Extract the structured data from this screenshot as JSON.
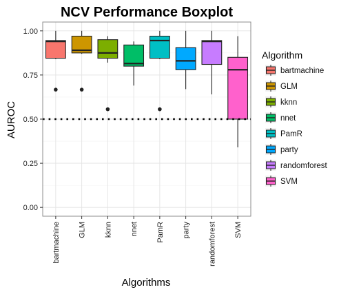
{
  "chart_data": {
    "type": "boxplot",
    "title": "NCV Performance Boxplot",
    "xlabel": "Algorithms",
    "ylabel": "AUROC",
    "ylim": [
      -0.05,
      1.05
    ],
    "yticks": [
      "0.00",
      "0.25",
      "0.50",
      "0.75",
      "1.00"
    ],
    "grid": true,
    "reference_line": {
      "y": 0.5,
      "style": "dotted"
    },
    "legend": {
      "title": "Algorithm",
      "position": "right"
    },
    "categories": [
      "bartmachine",
      "GLM",
      "kknn",
      "nnet",
      "PamR",
      "party",
      "randomforest",
      "SVM"
    ],
    "series": [
      {
        "name": "bartmachine",
        "color": "#F8766D",
        "min": 0.84,
        "q1": 0.845,
        "median": 0.94,
        "q3": 0.945,
        "max": 1.0,
        "outliers": [
          0.667
        ]
      },
      {
        "name": "GLM",
        "color": "#CD9600",
        "min": 0.87,
        "q1": 0.875,
        "median": 0.89,
        "q3": 0.97,
        "max": 1.0,
        "outliers": [
          0.667
        ]
      },
      {
        "name": "kknn",
        "color": "#7CAE00",
        "min": 0.82,
        "q1": 0.845,
        "median": 0.875,
        "q3": 0.95,
        "max": 0.97,
        "outliers": [
          0.556
        ]
      },
      {
        "name": "nnet",
        "color": "#00BE67",
        "min": 0.69,
        "q1": 0.8,
        "median": 0.815,
        "q3": 0.92,
        "max": 0.94,
        "outliers": []
      },
      {
        "name": "PamR",
        "color": "#00BFC4",
        "min": 0.84,
        "q1": 0.845,
        "median": 0.945,
        "q3": 0.97,
        "max": 1.0,
        "outliers": [
          0.556
        ]
      },
      {
        "name": "party",
        "color": "#00A9FF",
        "min": 0.67,
        "q1": 0.78,
        "median": 0.83,
        "q3": 0.905,
        "max": 1.0,
        "outliers": []
      },
      {
        "name": "randomforest",
        "color": "#C77CFF",
        "min": 0.64,
        "q1": 0.81,
        "median": 0.94,
        "q3": 0.945,
        "max": 1.0,
        "outliers": []
      },
      {
        "name": "SVM",
        "color": "#FF61CC",
        "min": 0.34,
        "q1": 0.5,
        "median": 0.78,
        "q3": 0.85,
        "max": 0.97,
        "outliers": []
      }
    ]
  }
}
